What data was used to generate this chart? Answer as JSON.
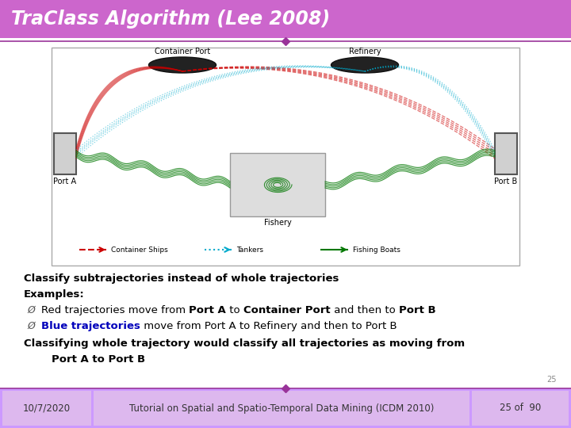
{
  "title": "TraClass Algorithm (Lee 2008)",
  "title_bg": "#CC66CC",
  "title_color": "#FFFFFF",
  "footer_bg": "#CC99FF",
  "footer_left": "10/7/2020",
  "footer_center": "Tutorial on Spatial and Spatio-Temporal Data Mining (ICDM 2010)",
  "footer_right": "25 of  90",
  "divider_color": "#993399",
  "body_bg": "#FFFFFF",
  "line1": "Classify subtrajectories instead of whole trajectories",
  "line2": "Examples:",
  "bullet_arrow": "Ø",
  "b1_p1": "Red trajectories move from ",
  "b1_p2": "Port A",
  "b1_p3": " to ",
  "b1_p4": "Container Port",
  "b1_p5": " and then to ",
  "b1_p6": "Port B",
  "b2_p1": "Blue trajectories",
  "b2_p2": " move from Port A to Refinery and then to Port B",
  "sum_p1": "Classifying whole trajectory would classify all trajectories as moving from",
  "sum_p2": "Port A to Port B",
  "footer_box_color": "#DDB8EE",
  "slide_num": "25"
}
